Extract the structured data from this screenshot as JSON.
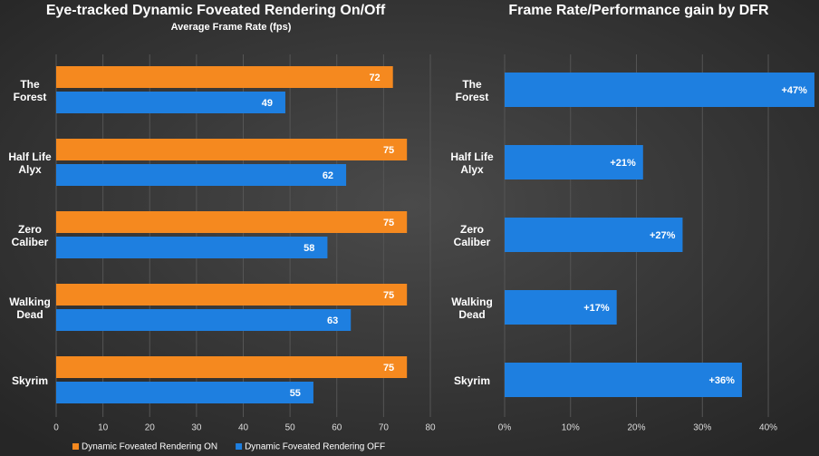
{
  "chart_data": [
    {
      "type": "bar",
      "title": "Eye-tracked Dynamic Foveated Rendering On/Off",
      "subtitle": "Average Frame Rate (fps)",
      "categories": [
        "The Forest",
        "Half Life Alyx",
        "Zero Caliber",
        "Walking Dead",
        "Skyrim"
      ],
      "series": [
        {
          "name": "Dynamic Foveated Rendering ON",
          "color": "#f5891f",
          "values": [
            72,
            75,
            75,
            75,
            75
          ]
        },
        {
          "name": "Dynamic Foveated Rendering OFF",
          "color": "#1e7fe0",
          "values": [
            49,
            62,
            58,
            63,
            55
          ]
        }
      ],
      "xlim": [
        0,
        80
      ],
      "xticks": [
        0,
        10,
        20,
        30,
        40,
        50,
        60,
        70,
        80
      ],
      "grid": true,
      "legend": "bottom"
    },
    {
      "type": "bar",
      "title": "Frame Rate/Performance gain by DFR",
      "categories": [
        "The Forest",
        "Half Life Alyx",
        "Zero Caliber",
        "Walking Dead",
        "Skyrim"
      ],
      "values": [
        47,
        21,
        27,
        17,
        36
      ],
      "value_labels": [
        "+47%",
        "+21%",
        "+27%",
        "+17%",
        "+36%"
      ],
      "color": "#1e7fe0",
      "xlim": [
        0,
        47.5
      ],
      "xticks": [
        {
          "value": 0,
          "label": "0%"
        },
        {
          "value": 10,
          "label": "10%"
        },
        {
          "value": 20,
          "label": "20%"
        },
        {
          "value": 30,
          "label": "30%"
        },
        {
          "value": 40,
          "label": "40%"
        }
      ],
      "grid": true
    }
  ]
}
